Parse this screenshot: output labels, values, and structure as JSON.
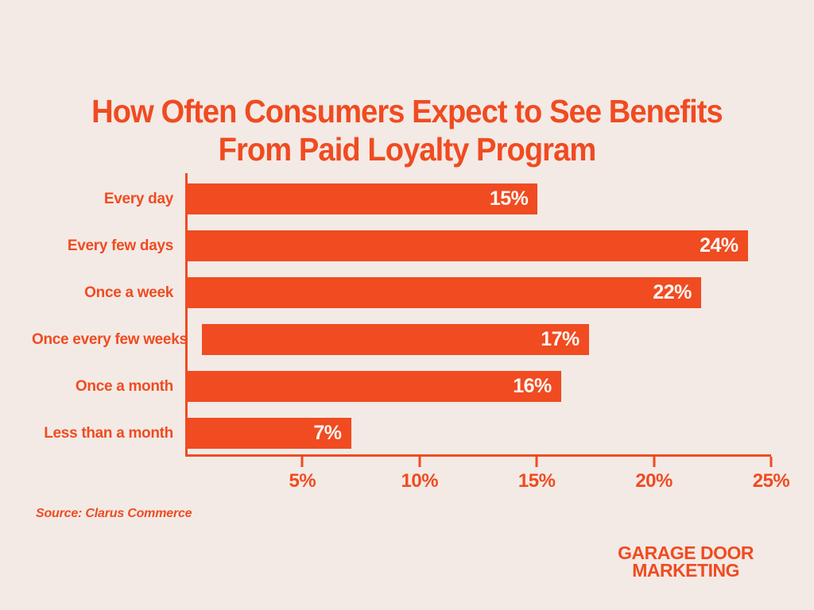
{
  "title": {
    "line1": "How Often Consumers Expect to See Benefits",
    "line2": "From Paid Loyalty Program"
  },
  "chart_data": {
    "type": "bar",
    "orientation": "horizontal",
    "title": "How Often Consumers Expect to See Benefits From Paid Loyalty Program",
    "categories": [
      "Every day",
      "Every few days",
      "Once a week",
      "Once every few weeks",
      "Once a month",
      "Less than a month"
    ],
    "values": [
      15,
      24,
      22,
      17,
      16,
      7
    ],
    "value_labels": [
      "15%",
      "24%",
      "22%",
      "17%",
      "16%",
      "7%"
    ],
    "xlabel": "",
    "ylabel": "",
    "xlim": [
      0,
      25
    ],
    "x_ticks": [
      5,
      10,
      15,
      20,
      25
    ],
    "x_tick_labels": [
      "5%",
      "10%",
      "15%",
      "20%",
      "25%"
    ],
    "grid": false,
    "legend": "none",
    "bar_color": "#f04b21",
    "value_label_color": "#fcf6f1"
  },
  "source": "Source: Clarus Commerce",
  "logo": {
    "line1": "GARAGE DOOR",
    "line2": "MARKETING"
  },
  "colors": {
    "accent": "#f04b21",
    "background": "#f3eae5",
    "value_text": "#fcf6f1"
  }
}
